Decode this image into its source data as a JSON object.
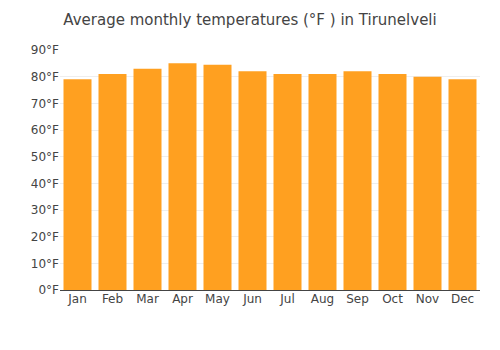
{
  "chart_data": {
    "type": "bar",
    "title": "Average monthly temperatures (°F ) in Tirunelveli",
    "categories": [
      "Jan",
      "Feb",
      "Mar",
      "Apr",
      "May",
      "Jun",
      "Jul",
      "Aug",
      "Sep",
      "Oct",
      "Nov",
      "Dec"
    ],
    "values": [
      79,
      81,
      83,
      85,
      84.5,
      82,
      81,
      81,
      82,
      81,
      80,
      79
    ],
    "color": "#FFA020",
    "ylim": [
      0,
      90
    ],
    "yticks": [
      {
        "value": 0,
        "label": "0°F"
      },
      {
        "value": 10,
        "label": "10°F"
      },
      {
        "value": 20,
        "label": "20°F"
      },
      {
        "value": 30,
        "label": "30°F"
      },
      {
        "value": 40,
        "label": "40°F"
      },
      {
        "value": 50,
        "label": "50°F"
      },
      {
        "value": 60,
        "label": "60°F"
      },
      {
        "value": 70,
        "label": "70°F"
      },
      {
        "value": 80,
        "label": "80°F"
      },
      {
        "value": 90,
        "label": "90°F"
      }
    ],
    "grid": true
  }
}
